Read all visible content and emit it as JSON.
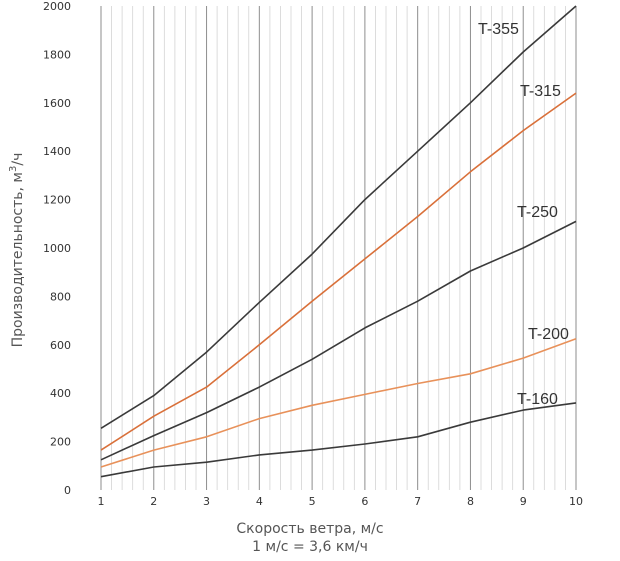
{
  "chart_data": {
    "type": "line",
    "xlabel": "Скорость ветра, м/с",
    "xlabel_note": "1 м/с = 3,6 км/ч",
    "ylabel_main": "Производительность, м",
    "ylabel_sup": "3",
    "ylabel_tail": "/ч",
    "x_ticks": [
      1,
      2,
      3,
      4,
      5,
      6,
      7,
      8,
      9,
      10
    ],
    "y_ticks": [
      0,
      200,
      400,
      600,
      800,
      1000,
      1200,
      1400,
      1600,
      1800,
      2000
    ],
    "xlim": [
      1,
      10
    ],
    "ylim": [
      0,
      2000
    ],
    "grid": true,
    "x": [
      1,
      2,
      3,
      4,
      5,
      6,
      7,
      8,
      9,
      10
    ],
    "series": [
      {
        "name": "T-355",
        "color": "#3a3a3a",
        "values": [
          255,
          390,
          570,
          775,
          975,
          1200,
          1400,
          1600,
          1810,
          2000
        ]
      },
      {
        "name": "T-315",
        "color": "#d9703a",
        "values": [
          165,
          305,
          425,
          600,
          780,
          955,
          1130,
          1315,
          1485,
          1640
        ]
      },
      {
        "name": "T-250",
        "color": "#3a3a3a",
        "values": [
          125,
          225,
          320,
          425,
          540,
          670,
          780,
          905,
          1000,
          1110
        ]
      },
      {
        "name": "T-200",
        "color": "#e8915a",
        "values": [
          95,
          165,
          220,
          295,
          350,
          395,
          440,
          480,
          545,
          625
        ]
      },
      {
        "name": "T-160",
        "color": "#3a3a3a",
        "values": [
          55,
          95,
          115,
          145,
          165,
          190,
          220,
          280,
          330,
          360
        ]
      }
    ]
  }
}
